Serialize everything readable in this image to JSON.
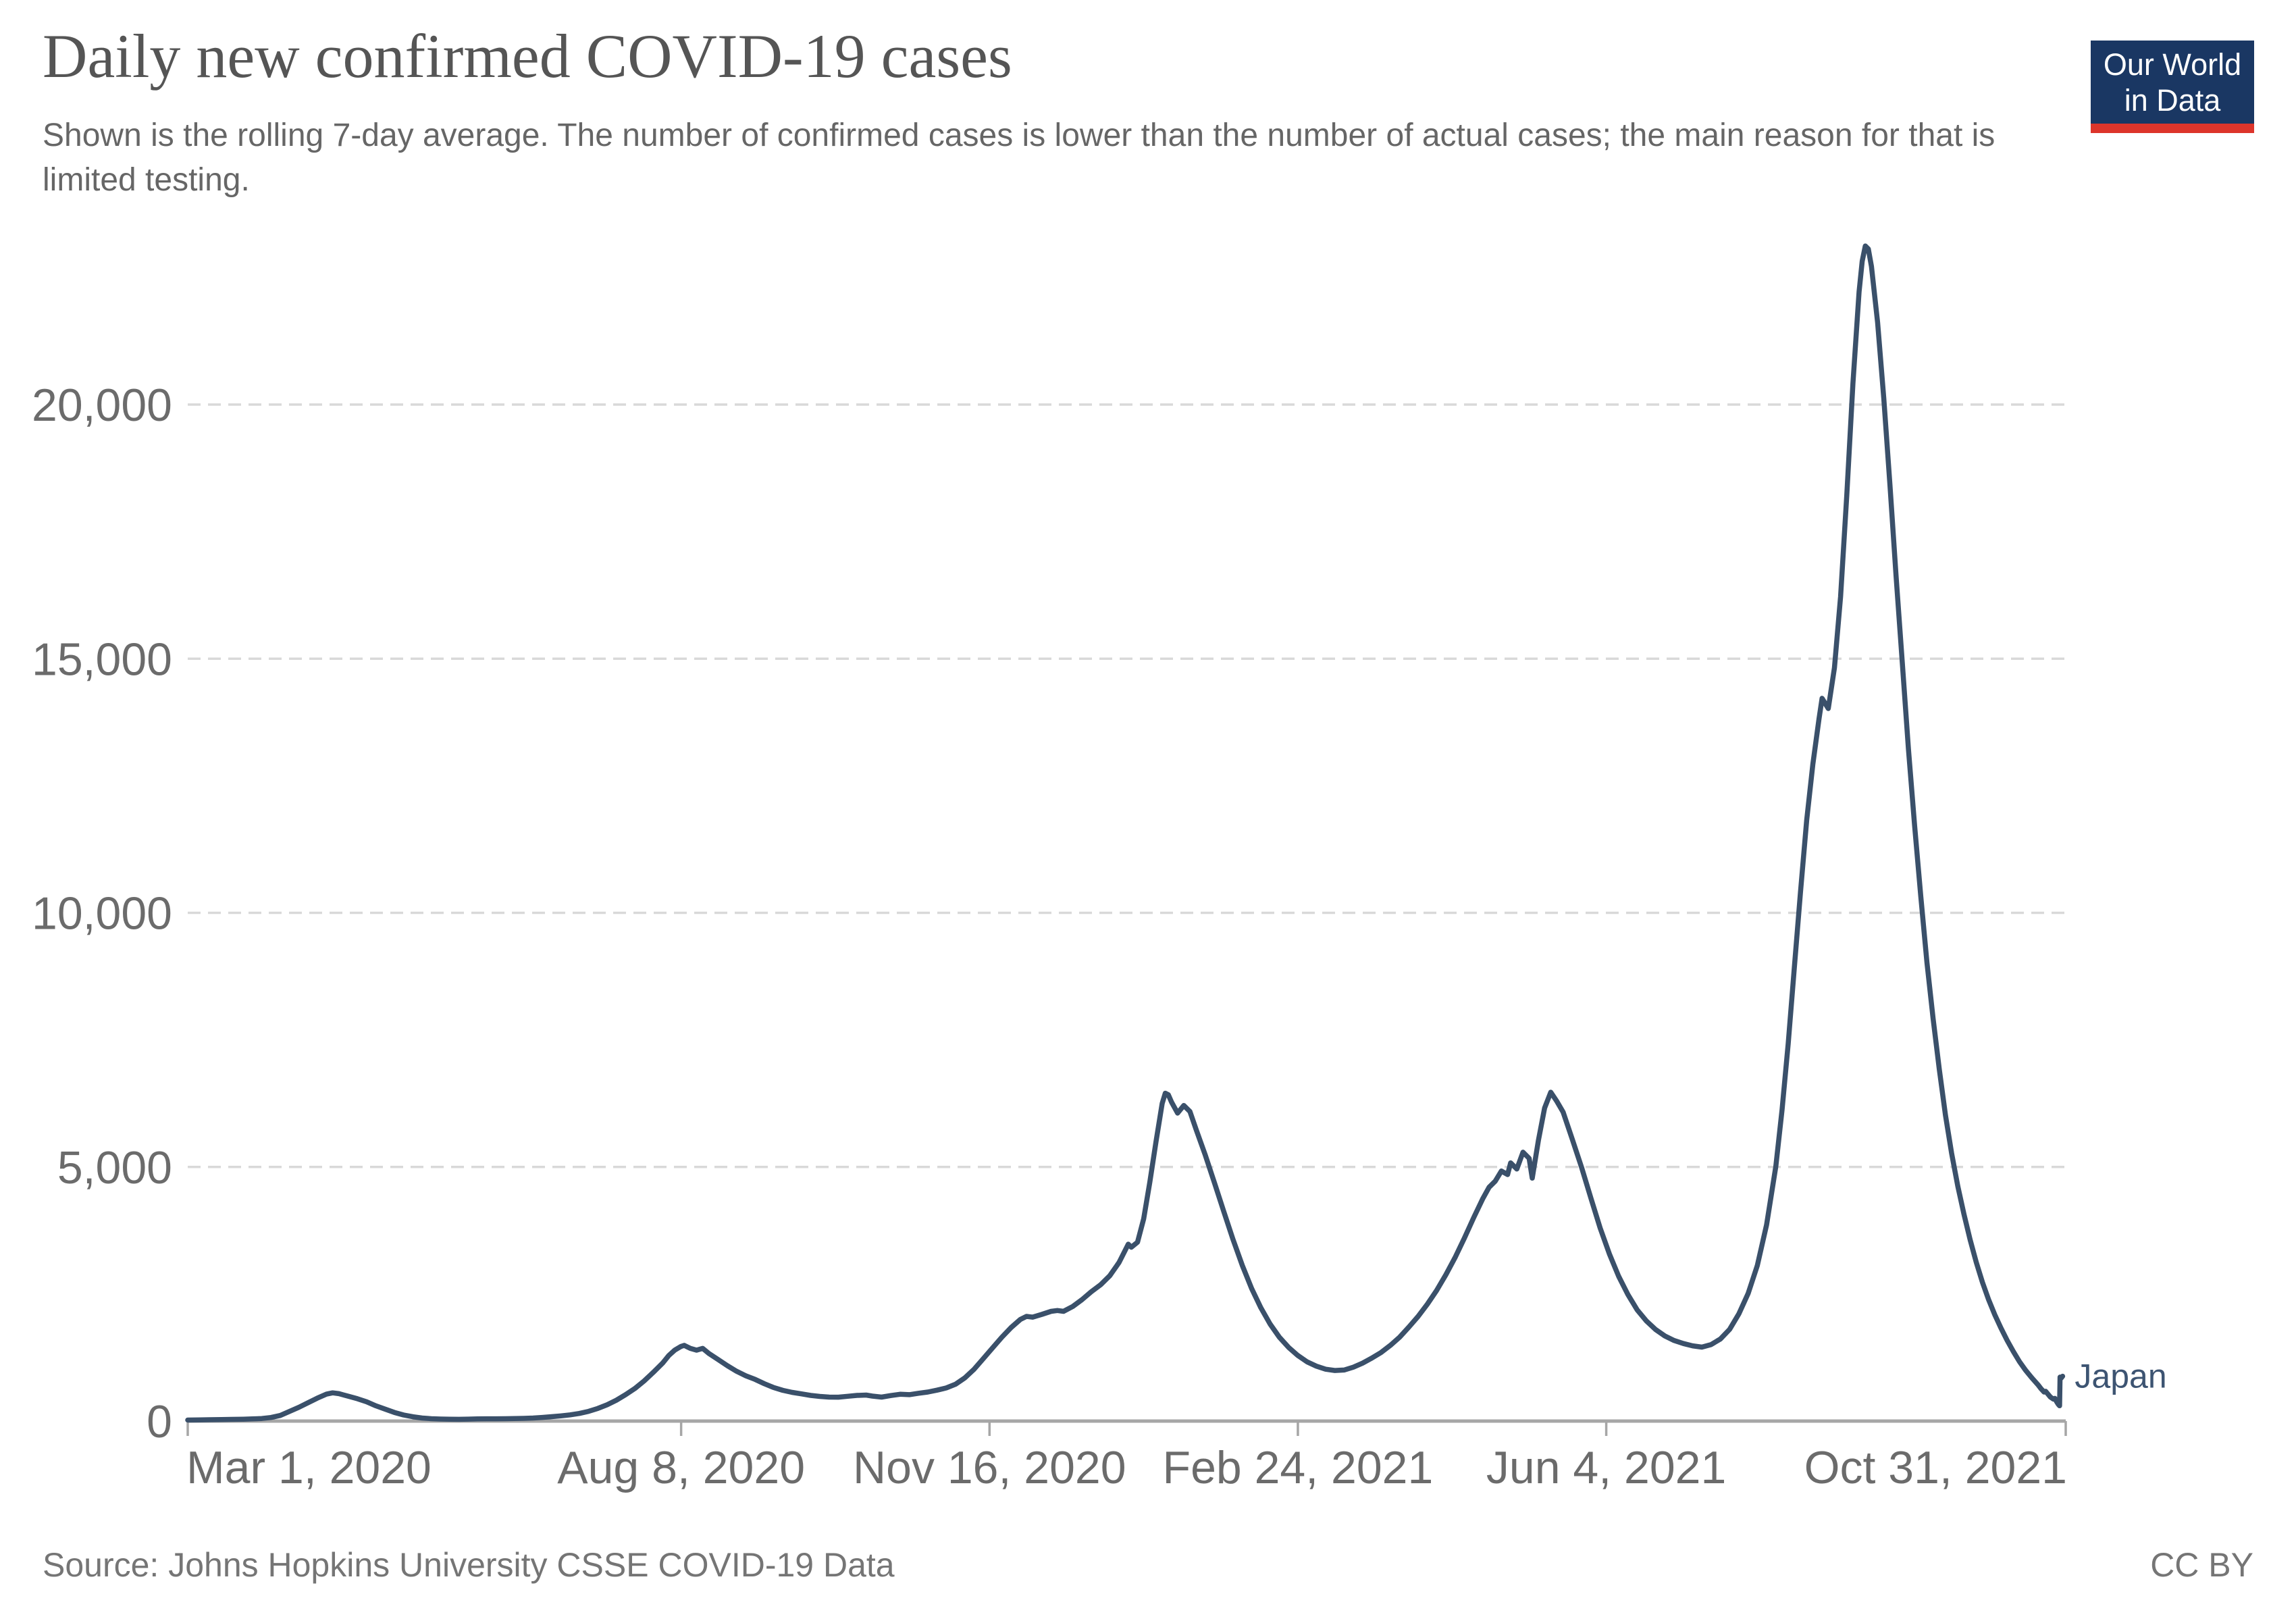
{
  "header": {
    "title": "Daily new confirmed COVID-19 cases",
    "subtitle": "Shown is the rolling 7-day average. The number of confirmed cases is lower than the number of actual cases; the main reason for that is limited testing.",
    "logo_line1": "Our World",
    "logo_line2": "in Data"
  },
  "footer": {
    "source": "Source: Johns Hopkins University CSSE COVID-19 Data",
    "license": "CC BY"
  },
  "colors": {
    "line": "#3a506a",
    "entity_label": "#3d5472",
    "title": "#555555",
    "text_gray": "#6b6b6b",
    "grid": "#d9d9d9",
    "axis": "#a6a6a6",
    "logo_bg": "#1a3763",
    "logo_red": "#dd352b"
  },
  "chart_data": {
    "type": "line",
    "title": "Daily new confirmed COVID-19 cases",
    "subtitle": "Shown is the rolling 7-day average.",
    "xlabel": "",
    "ylabel": "",
    "grid": "dashed horizontal",
    "legend_position": "end-of-line label",
    "x_range": [
      "Mar 1, 2020",
      "Oct 31, 2021"
    ],
    "x_total_days": 609,
    "x_tick_days": [
      0,
      160,
      260,
      360,
      460,
      609
    ],
    "x_tick_labels": [
      "Mar 1, 2020",
      "Aug 8, 2020",
      "Nov 16, 2020",
      "Feb 24, 2021",
      "Jun 4, 2021",
      "Oct 31, 2021"
    ],
    "y_ticks": [
      0,
      5000,
      10000,
      15000,
      20000
    ],
    "y_tick_labels": [
      "0",
      "5,000",
      "10,000",
      "15,000",
      "20,000"
    ],
    "ylim": [
      0,
      24000
    ],
    "series": [
      {
        "name": "Japan",
        "points": [
          [
            0,
            20
          ],
          [
            4,
            22
          ],
          [
            7,
            26
          ],
          [
            11,
            30
          ],
          [
            14,
            33
          ],
          [
            18,
            37
          ],
          [
            21,
            42
          ],
          [
            24,
            50
          ],
          [
            27,
            70
          ],
          [
            30,
            110
          ],
          [
            33,
            190
          ],
          [
            36,
            270
          ],
          [
            39,
            360
          ],
          [
            42,
            450
          ],
          [
            45,
            530
          ],
          [
            47,
            555
          ],
          [
            49,
            540
          ],
          [
            52,
            490
          ],
          [
            55,
            440
          ],
          [
            58,
            380
          ],
          [
            61,
            300
          ],
          [
            64,
            235
          ],
          [
            67,
            170
          ],
          [
            70,
            120
          ],
          [
            73,
            85
          ],
          [
            76,
            60
          ],
          [
            79,
            47
          ],
          [
            82,
            40
          ],
          [
            85,
            36
          ],
          [
            88,
            35
          ],
          [
            91,
            38
          ],
          [
            94,
            42
          ],
          [
            97,
            45
          ],
          [
            100,
            45
          ],
          [
            103,
            46
          ],
          [
            106,
            49
          ],
          [
            109,
            53
          ],
          [
            112,
            60
          ],
          [
            115,
            72
          ],
          [
            118,
            86
          ],
          [
            121,
            102
          ],
          [
            124,
            122
          ],
          [
            127,
            150
          ],
          [
            130,
            192
          ],
          [
            133,
            248
          ],
          [
            136,
            320
          ],
          [
            139,
            410
          ],
          [
            142,
            520
          ],
          [
            145,
            640
          ],
          [
            148,
            790
          ],
          [
            151,
            960
          ],
          [
            154,
            1140
          ],
          [
            156,
            1290
          ],
          [
            158,
            1400
          ],
          [
            160,
            1470
          ],
          [
            161,
            1490
          ],
          [
            163,
            1430
          ],
          [
            165,
            1395
          ],
          [
            167,
            1430
          ],
          [
            169,
            1330
          ],
          [
            172,
            1210
          ],
          [
            175,
            1090
          ],
          [
            178,
            980
          ],
          [
            181,
            890
          ],
          [
            184,
            820
          ],
          [
            187,
            735
          ],
          [
            190,
            660
          ],
          [
            193,
            605
          ],
          [
            196,
            565
          ],
          [
            199,
            535
          ],
          [
            202,
            505
          ],
          [
            205,
            485
          ],
          [
            208,
            472
          ],
          [
            211,
            470
          ],
          [
            214,
            488
          ],
          [
            217,
            505
          ],
          [
            220,
            512
          ],
          [
            222,
            492
          ],
          [
            225,
            472
          ],
          [
            228,
            502
          ],
          [
            231,
            528
          ],
          [
            234,
            520
          ],
          [
            237,
            548
          ],
          [
            240,
            572
          ],
          [
            243,
            608
          ],
          [
            246,
            652
          ],
          [
            249,
            725
          ],
          [
            252,
            850
          ],
          [
            255,
            1020
          ],
          [
            258,
            1230
          ],
          [
            261,
            1440
          ],
          [
            264,
            1650
          ],
          [
            267,
            1840
          ],
          [
            270,
            2000
          ],
          [
            272,
            2060
          ],
          [
            274,
            2045
          ],
          [
            277,
            2100
          ],
          [
            280,
            2160
          ],
          [
            282,
            2175
          ],
          [
            284,
            2160
          ],
          [
            287,
            2255
          ],
          [
            290,
            2390
          ],
          [
            293,
            2545
          ],
          [
            296,
            2680
          ],
          [
            299,
            2860
          ],
          [
            302,
            3120
          ],
          [
            304,
            3360
          ],
          [
            305,
            3480
          ],
          [
            306,
            3420
          ],
          [
            308,
            3520
          ],
          [
            310,
            3980
          ],
          [
            312,
            4700
          ],
          [
            314,
            5500
          ],
          [
            316,
            6250
          ],
          [
            317,
            6450
          ],
          [
            318,
            6420
          ],
          [
            319,
            6280
          ],
          [
            321,
            6060
          ],
          [
            323,
            6210
          ],
          [
            325,
            6090
          ],
          [
            327,
            5740
          ],
          [
            330,
            5230
          ],
          [
            333,
            4680
          ],
          [
            336,
            4120
          ],
          [
            339,
            3570
          ],
          [
            342,
            3060
          ],
          [
            345,
            2610
          ],
          [
            348,
            2230
          ],
          [
            351,
            1910
          ],
          [
            354,
            1650
          ],
          [
            357,
            1450
          ],
          [
            360,
            1290
          ],
          [
            363,
            1165
          ],
          [
            366,
            1080
          ],
          [
            369,
            1020
          ],
          [
            372,
            995
          ],
          [
            375,
            1005
          ],
          [
            378,
            1060
          ],
          [
            381,
            1140
          ],
          [
            384,
            1240
          ],
          [
            387,
            1350
          ],
          [
            390,
            1490
          ],
          [
            393,
            1650
          ],
          [
            396,
            1850
          ],
          [
            399,
            2060
          ],
          [
            402,
            2300
          ],
          [
            405,
            2570
          ],
          [
            408,
            2880
          ],
          [
            411,
            3220
          ],
          [
            414,
            3600
          ],
          [
            417,
            4000
          ],
          [
            420,
            4380
          ],
          [
            422,
            4600
          ],
          [
            424,
            4720
          ],
          [
            426,
            4920
          ],
          [
            428,
            4850
          ],
          [
            429,
            5080
          ],
          [
            431,
            4960
          ],
          [
            433,
            5290
          ],
          [
            435,
            5170
          ],
          [
            436,
            4780
          ],
          [
            438,
            5520
          ],
          [
            440,
            6160
          ],
          [
            442,
            6470
          ],
          [
            444,
            6290
          ],
          [
            446,
            6080
          ],
          [
            449,
            5540
          ],
          [
            452,
            4990
          ],
          [
            455,
            4390
          ],
          [
            458,
            3800
          ],
          [
            461,
            3290
          ],
          [
            464,
            2850
          ],
          [
            467,
            2490
          ],
          [
            470,
            2190
          ],
          [
            473,
            1970
          ],
          [
            476,
            1800
          ],
          [
            479,
            1675
          ],
          [
            482,
            1585
          ],
          [
            485,
            1525
          ],
          [
            488,
            1480
          ],
          [
            491,
            1455
          ],
          [
            494,
            1505
          ],
          [
            497,
            1615
          ],
          [
            500,
            1805
          ],
          [
            503,
            2110
          ],
          [
            506,
            2510
          ],
          [
            509,
            3060
          ],
          [
            512,
            3860
          ],
          [
            515,
            5010
          ],
          [
            517,
            6120
          ],
          [
            519,
            7420
          ],
          [
            521,
            8920
          ],
          [
            523,
            10420
          ],
          [
            525,
            11820
          ],
          [
            527,
            12920
          ],
          [
            529,
            13820
          ],
          [
            530,
            14220
          ],
          [
            531,
            14120
          ],
          [
            532,
            14020
          ],
          [
            534,
            14820
          ],
          [
            536,
            16220
          ],
          [
            538,
            18220
          ],
          [
            540,
            20420
          ],
          [
            542,
            22220
          ],
          [
            543,
            22820
          ],
          [
            544,
            23120
          ],
          [
            545,
            23060
          ],
          [
            546,
            22720
          ],
          [
            548,
            21620
          ],
          [
            550,
            20120
          ],
          [
            552,
            18420
          ],
          [
            554,
            16620
          ],
          [
            556,
            14920
          ],
          [
            558,
            13220
          ],
          [
            560,
            11720
          ],
          [
            562,
            10320
          ],
          [
            564,
            9020
          ],
          [
            566,
            7920
          ],
          [
            568,
            6920
          ],
          [
            570,
            6020
          ],
          [
            572,
            5270
          ],
          [
            574,
            4620
          ],
          [
            576,
            4070
          ],
          [
            578,
            3570
          ],
          [
            580,
            3120
          ],
          [
            582,
            2730
          ],
          [
            584,
            2390
          ],
          [
            586,
            2090
          ],
          [
            588,
            1830
          ],
          [
            590,
            1590
          ],
          [
            592,
            1370
          ],
          [
            594,
            1170
          ],
          [
            596,
            1000
          ],
          [
            598,
            850
          ],
          [
            600,
            715
          ],
          [
            601,
            635
          ],
          [
            602,
            572
          ],
          [
            602.5,
            585
          ],
          [
            603,
            548
          ],
          [
            604,
            475
          ],
          [
            605,
            432
          ],
          [
            605.5,
            446
          ],
          [
            606,
            385
          ],
          [
            606.6,
            330
          ],
          [
            607,
            302
          ],
          [
            607.15,
            865
          ],
          [
            607.5,
            845
          ],
          [
            608,
            882
          ]
        ]
      }
    ]
  }
}
